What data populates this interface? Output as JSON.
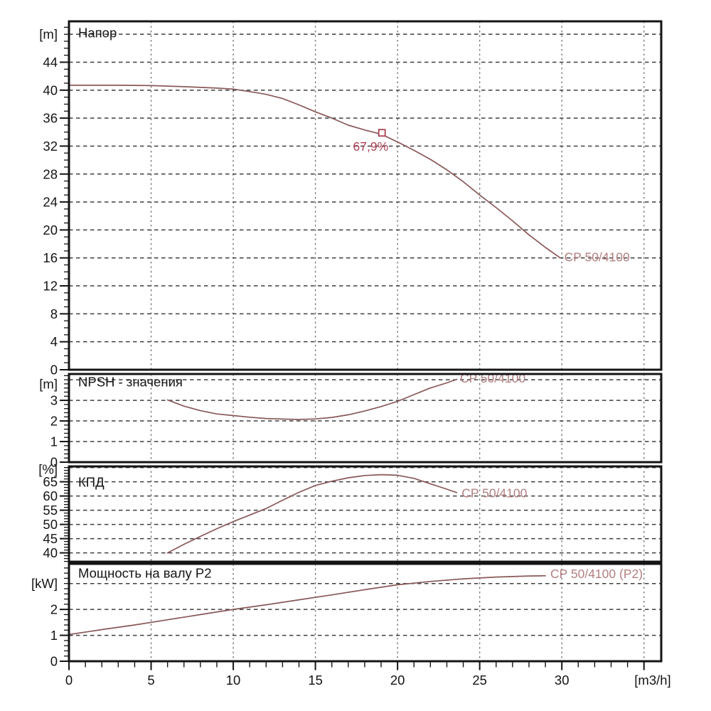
{
  "page": {
    "background": "#ffffff"
  },
  "colors": {
    "axis": "#141414",
    "text": "#141414",
    "grid_h": "#3f3f3f",
    "grid_v": "#787878",
    "curve": "#8a5858",
    "curve_label": "#b38080",
    "duty": "#ab4052"
  },
  "chart_data": {
    "type": "line",
    "title": "",
    "xlabel": "[m3/h]",
    "xlim": [
      0,
      36.05
    ],
    "grid": "dashed",
    "legend_position": "inline-labels",
    "x_axis": {
      "unit": "[m3/h]",
      "labeled_ticks": [
        0,
        5,
        10,
        15,
        20,
        25,
        30
      ],
      "grid_ticks": [
        5,
        10,
        15,
        20,
        25,
        30,
        35
      ],
      "minor_step": 1,
      "minor_max": 35
    },
    "panels": [
      {
        "id": "head",
        "title": "Напор",
        "unit": "[m]",
        "unit_value": 48,
        "ylim": [
          0,
          49.85
        ],
        "y_grid": [
          4,
          8,
          12,
          16,
          20,
          24,
          28,
          32,
          36,
          40,
          44,
          48
        ],
        "y_labels": [
          0,
          4,
          8,
          12,
          16,
          20,
          24,
          28,
          32,
          36,
          40,
          44
        ],
        "y_minor_step": 1,
        "series": [
          {
            "name": "CP 50/4100",
            "points": [
              [
                0,
                40.7
              ],
              [
                3,
                40.7
              ],
              [
                5,
                40.65
              ],
              [
                7,
                40.5
              ],
              [
                9,
                40.3
              ],
              [
                10,
                40.15
              ],
              [
                11,
                39.8
              ],
              [
                12,
                39.4
              ],
              [
                13,
                38.8
              ],
              [
                14,
                37.9
              ],
              [
                15,
                36.9
              ],
              [
                16,
                36.0
              ],
              [
                17,
                35.0
              ],
              [
                18,
                34.3
              ],
              [
                19,
                33.7
              ],
              [
                20,
                32.6
              ],
              [
                21,
                31.4
              ],
              [
                22,
                30.1
              ],
              [
                23,
                28.6
              ],
              [
                24,
                26.9
              ],
              [
                25,
                25.0
              ],
              [
                26,
                23.2
              ],
              [
                27,
                21.3
              ],
              [
                28,
                19.3
              ],
              [
                29,
                17.5
              ],
              [
                29.9,
                16.0
              ]
            ]
          }
        ],
        "series_label": {
          "text": "CP 50/4100",
          "x": 30.15,
          "y": 16.1
        },
        "duty_point": {
          "x": 19.05,
          "y": 33.9,
          "label": "67,9%"
        }
      },
      {
        "id": "npsh",
        "title": "NPSH - значения",
        "unit": "[m]",
        "unit_value": 3.8,
        "ylim": [
          0,
          4.28
        ],
        "y_grid": [
          1,
          2,
          3,
          4
        ],
        "y_labels": [
          0,
          1,
          2,
          3
        ],
        "y_minor_step": 0.2,
        "series": [
          {
            "name": "CP 50/4100",
            "points": [
              [
                6,
                3.02
              ],
              [
                7,
                2.72
              ],
              [
                8,
                2.5
              ],
              [
                9,
                2.34
              ],
              [
                10,
                2.26
              ],
              [
                11,
                2.18
              ],
              [
                12,
                2.12
              ],
              [
                13,
                2.09
              ],
              [
                14,
                2.07
              ],
              [
                15,
                2.1
              ],
              [
                16,
                2.17
              ],
              [
                17,
                2.3
              ],
              [
                18,
                2.48
              ],
              [
                19,
                2.7
              ],
              [
                20,
                2.95
              ],
              [
                21,
                3.28
              ],
              [
                22,
                3.6
              ],
              [
                23,
                3.85
              ],
              [
                23.6,
                4.02
              ]
            ]
          }
        ],
        "series_label": {
          "text": "CP 50/4100",
          "x": 23.8,
          "y": 4.08
        }
      },
      {
        "id": "efficiency",
        "title": "КПД",
        "unit": "[%]",
        "unit_value": 69.4,
        "ylim": [
          36.9,
          70.4
        ],
        "y_grid": [
          40,
          45,
          50,
          55,
          60,
          65,
          70
        ],
        "y_labels": [
          40,
          45,
          50,
          55,
          60,
          65
        ],
        "y_minor_step": 1,
        "series": [
          {
            "name": "CP 50/4100",
            "points": [
              [
                6,
                40
              ],
              [
                7,
                43
              ],
              [
                8,
                45.8
              ],
              [
                9,
                48.5
              ],
              [
                10,
                51
              ],
              [
                11,
                53.3
              ],
              [
                12,
                55.6
              ],
              [
                13,
                58.5
              ],
              [
                14,
                61.3
              ],
              [
                15,
                63.7
              ],
              [
                16,
                65.2
              ],
              [
                17,
                66.4
              ],
              [
                18,
                67.2
              ],
              [
                19,
                67.5
              ],
              [
                20,
                67.3
              ],
              [
                21,
                66.2
              ],
              [
                22,
                64.3
              ],
              [
                23,
                62.4
              ],
              [
                23.6,
                61.2
              ]
            ]
          }
        ],
        "series_label": {
          "text": "CP 50/4100",
          "x": 23.9,
          "y": 61.0
        }
      },
      {
        "id": "power",
        "title": "Мощность на валу P2",
        "unit": "[kW]",
        "unit_value": 3.0,
        "ylim": [
          0,
          3.76
        ],
        "y_grid": [
          1,
          2,
          3
        ],
        "y_labels": [
          0,
          1,
          2
        ],
        "y_minor_step": 0.2,
        "series": [
          {
            "name": "CP 50/4100 (P2)",
            "points": [
              [
                0,
                1.03
              ],
              [
                2,
                1.22
              ],
              [
                4,
                1.4
              ],
              [
                6,
                1.6
              ],
              [
                8,
                1.8
              ],
              [
                10,
                2.0
              ],
              [
                12,
                2.18
              ],
              [
                14,
                2.37
              ],
              [
                16,
                2.56
              ],
              [
                18,
                2.76
              ],
              [
                20,
                2.95
              ],
              [
                22,
                3.08
              ],
              [
                24,
                3.18
              ],
              [
                26,
                3.25
              ],
              [
                28,
                3.29
              ],
              [
                29,
                3.3
              ]
            ]
          }
        ],
        "series_label": {
          "text": "CP 50/4100 (P2)",
          "x": 29.3,
          "y": 3.37
        }
      }
    ]
  }
}
